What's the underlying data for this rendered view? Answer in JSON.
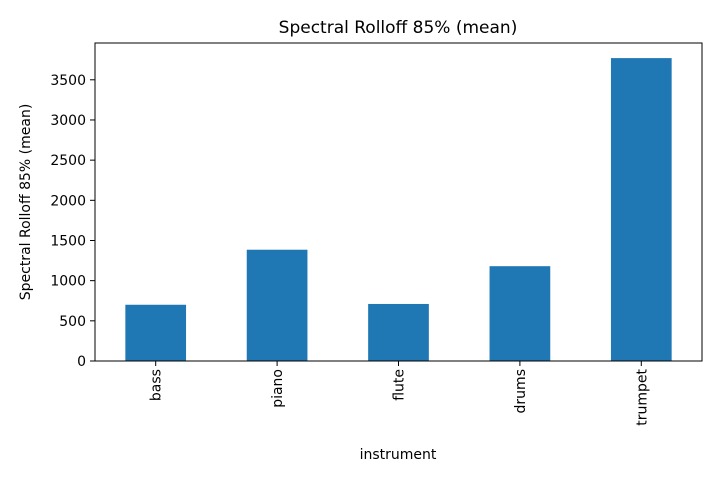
{
  "chart_data": {
    "type": "bar",
    "title": "Spectral Rolloff 85% (mean)",
    "xlabel": "instrument",
    "ylabel": "Spectral Rolloff 85% (mean)",
    "categories": [
      "bass",
      "piano",
      "flute",
      "drums",
      "trumpet"
    ],
    "values": [
      700,
      1385,
      710,
      1180,
      3770
    ],
    "ylim": [
      0,
      3958
    ],
    "yticks": [
      0,
      500,
      1000,
      1500,
      2000,
      2500,
      3000,
      3500
    ],
    "grid": false,
    "legend": "none",
    "bar_color": "#1f77b4"
  }
}
